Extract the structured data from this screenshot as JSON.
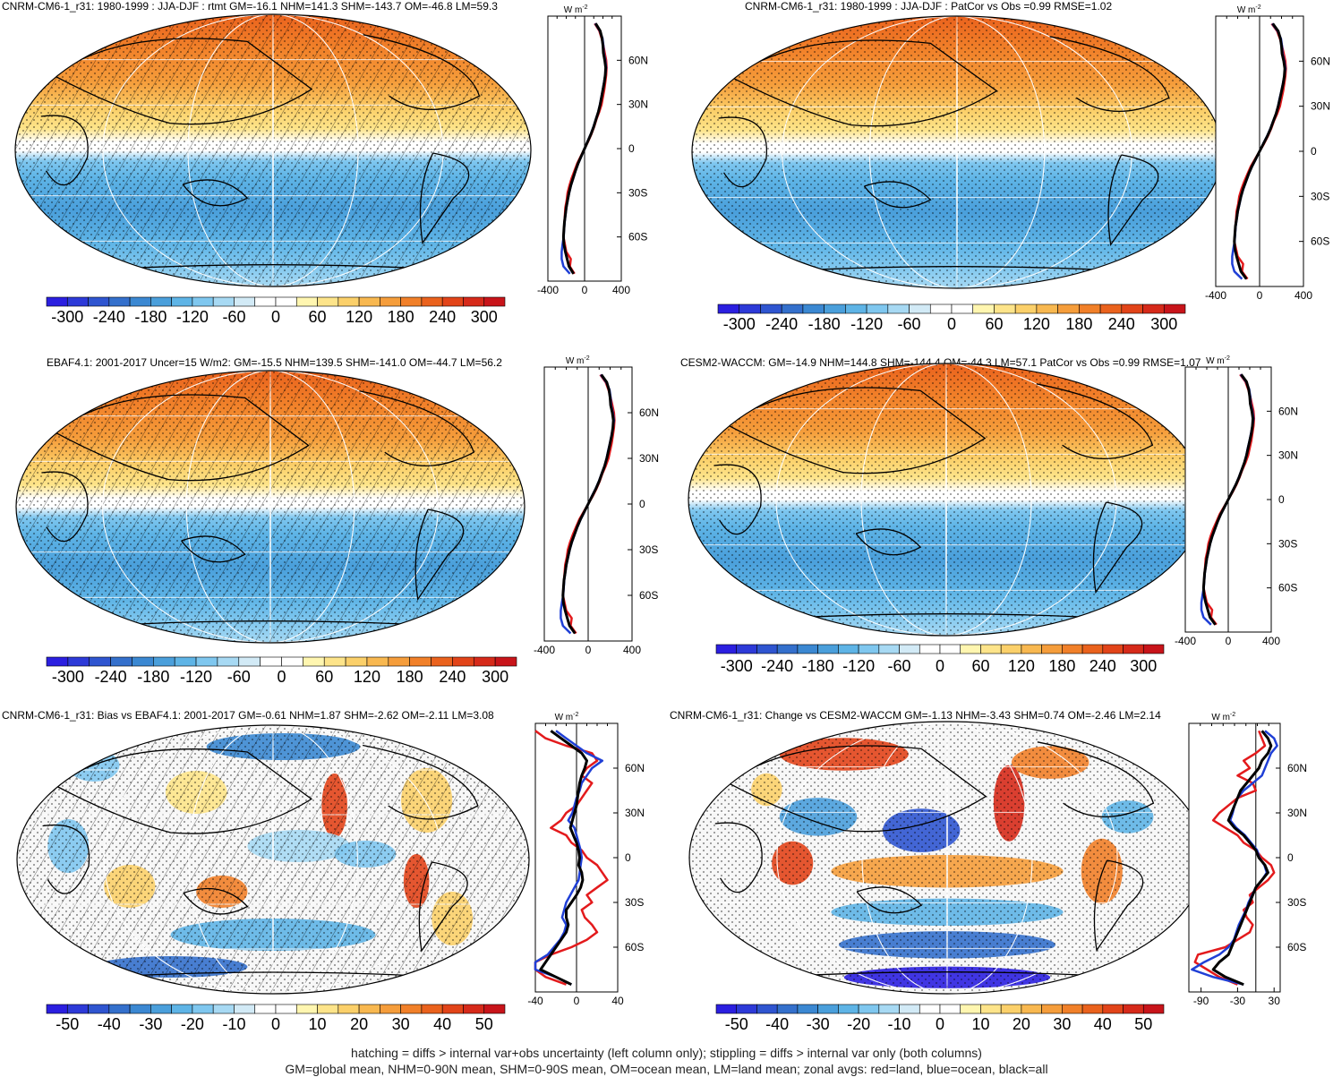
{
  "panels": [
    {
      "id": "p1",
      "title": "CNRM-CM6-1_r31: 1980-1999 : JJA-DJF : rtmt GM=-16.1 NHM=141.3 SHM=-143.7 OM=-46.8 LM=59.3",
      "field": "mean",
      "hatched": true,
      "colorbar_labels": [
        "-300",
        "-240",
        "-180",
        "-120",
        "-60",
        "0",
        "60",
        "120",
        "180",
        "240",
        "300"
      ],
      "zonal_x_ticks": [
        "-400",
        "0",
        "400"
      ],
      "zonal_x_range": [
        -400,
        400
      ],
      "lat_labels": [
        "60N",
        "30N",
        "0",
        "30S",
        "60S"
      ]
    },
    {
      "id": "p2",
      "title": "CNRM-CM6-1_r31: 1980-1999 : JJA-DJF : PatCor vs Obs =0.99 RMSE=1.02",
      "field": "mean",
      "hatched": false,
      "colorbar_labels": [
        "-300",
        "-240",
        "-180",
        "-120",
        "-60",
        "0",
        "60",
        "120",
        "180",
        "240",
        "300"
      ],
      "zonal_x_ticks": [
        "-400",
        "0",
        "400"
      ],
      "zonal_x_range": [
        -400,
        400
      ],
      "lat_labels": [
        "60N",
        "30N",
        "0",
        "30S",
        "60S"
      ]
    },
    {
      "id": "p3",
      "title": "EBAF4.1: 2001-2017 Uncer=15 W/m2: GM=-15.5 NHM=139.5 SHM=-141.0 OM=-44.7 LM=56.2",
      "field": "mean",
      "hatched": true,
      "colorbar_labels": [
        "-300",
        "-240",
        "-180",
        "-120",
        "-60",
        "0",
        "60",
        "120",
        "180",
        "240",
        "300"
      ],
      "zonal_x_ticks": [
        "-400",
        "0",
        "400"
      ],
      "zonal_x_range": [
        -400,
        400
      ],
      "lat_labels": [
        "60N",
        "30N",
        "0",
        "30S",
        "60S"
      ]
    },
    {
      "id": "p4",
      "title": "CESM2-WACCM: GM=-14.9 NHM=144.8 SHM=-144.4 OM=-44.3 LM=57.1 PatCor vs Obs =0.99 RMSE=1.07",
      "field": "mean",
      "hatched": false,
      "colorbar_labels": [
        "-300",
        "-240",
        "-180",
        "-120",
        "-60",
        "0",
        "60",
        "120",
        "180",
        "240",
        "300"
      ],
      "zonal_x_ticks": [
        "-400",
        "0",
        "400"
      ],
      "zonal_x_range": [
        -400,
        400
      ],
      "lat_labels": [
        "60N",
        "30N",
        "0",
        "30S",
        "60S"
      ]
    },
    {
      "id": "p5",
      "title": "CNRM-CM6-1_r31: Bias vs EBAF4.1: 2001-2017 GM=-0.61 NHM=1.87 SHM=-2.62 OM=-2.11 LM=3.08",
      "field": "bias",
      "hatched": true,
      "colorbar_labels": [
        "-50",
        "-40",
        "-30",
        "-20",
        "-10",
        "0",
        "10",
        "20",
        "30",
        "40",
        "50"
      ],
      "zonal_x_ticks": [
        "-40",
        "0",
        "40"
      ],
      "zonal_x_range": [
        -40,
        40
      ],
      "lat_labels": [
        "60N",
        "30N",
        "0",
        "30S",
        "60S"
      ]
    },
    {
      "id": "p6",
      "title": "CNRM-CM6-1_r31: Change vs CESM2-WACCM GM=-1.13 NHM=-3.43 SHM=0.74 OM=-2.46 LM=2.14",
      "field": "change",
      "hatched": false,
      "colorbar_labels": [
        "-50",
        "-40",
        "-30",
        "-20",
        "-10",
        "0",
        "10",
        "20",
        "30",
        "40",
        "50"
      ],
      "zonal_x_ticks": [
        "-90",
        "-30",
        "30"
      ],
      "zonal_x_range": [
        -110,
        40
      ],
      "lat_labels": [
        "60N",
        "30N",
        "0",
        "30S",
        "60S"
      ]
    }
  ],
  "unit_label": "W m",
  "unit_superscript": "-2",
  "colorbar_colors": [
    "#2b1fe0",
    "#2d3ad8",
    "#2f55d0",
    "#3470cc",
    "#3b88d2",
    "#4a9fdb",
    "#5eb4e6",
    "#7fc7ef",
    "#a7d9f3",
    "#d2eaf6",
    "#ffffff",
    "#ffffff",
    "#fff6b0",
    "#fde48a",
    "#fbd06a",
    "#f8b850",
    "#f59d3b",
    "#f18029",
    "#ea621d",
    "#e24419",
    "#d62a1a",
    "#c8141a"
  ],
  "zonal_line_colors": {
    "land": "#e31a1c",
    "ocean": "#1f3fd6",
    "all": "#000000"
  },
  "zonal_profiles": {
    "mean_lats": [
      85,
      80,
      75,
      70,
      65,
      60,
      55,
      50,
      45,
      40,
      35,
      30,
      25,
      20,
      15,
      10,
      5,
      0,
      -5,
      -10,
      -15,
      -20,
      -25,
      -30,
      -35,
      -40,
      -45,
      -50,
      -55,
      -60,
      -65,
      -70,
      -75,
      -80,
      -85
    ],
    "mean_all": [
      120,
      170,
      190,
      200,
      205,
      220,
      230,
      225,
      215,
      200,
      185,
      170,
      150,
      125,
      100,
      70,
      35,
      0,
      -35,
      -70,
      -100,
      -125,
      -150,
      -170,
      -185,
      -200,
      -210,
      -220,
      -225,
      -230,
      -225,
      -210,
      -190,
      -170,
      -120
    ],
    "mean_land": [
      110,
      160,
      185,
      205,
      220,
      235,
      240,
      235,
      225,
      215,
      200,
      185,
      160,
      130,
      105,
      75,
      40,
      0,
      -40,
      -80,
      -110,
      -140,
      -165,
      -185,
      -195,
      -210,
      -215,
      -220,
      -225,
      -230,
      -215,
      -200,
      -150,
      -160,
      -110
    ],
    "mean_ocean": [
      115,
      165,
      195,
      205,
      210,
      225,
      235,
      225,
      212,
      198,
      182,
      168,
      150,
      123,
      98,
      68,
      33,
      0,
      -33,
      -68,
      -98,
      -123,
      -148,
      -168,
      -183,
      -198,
      -208,
      -218,
      -223,
      -228,
      -240,
      -250,
      -250,
      -230,
      -160
    ],
    "bias_lats": [
      85,
      80,
      75,
      70,
      65,
      60,
      55,
      50,
      45,
      40,
      35,
      30,
      25,
      20,
      15,
      10,
      5,
      0,
      -5,
      -10,
      -15,
      -20,
      -25,
      -30,
      -35,
      -40,
      -45,
      -50,
      -55,
      -60,
      -65,
      -70,
      -75,
      -80,
      -85
    ],
    "bias_all": [
      -25,
      -15,
      -5,
      5,
      10,
      8,
      5,
      3,
      2,
      1,
      0,
      -2,
      -4,
      -6,
      -3,
      0,
      2,
      3,
      2,
      5,
      6,
      4,
      0,
      -5,
      -10,
      -10,
      -8,
      -10,
      -15,
      -20,
      -25,
      -30,
      -35,
      -20,
      -5
    ],
    "bias_land": [
      -40,
      -30,
      -10,
      15,
      20,
      10,
      5,
      15,
      10,
      5,
      0,
      -10,
      -15,
      -25,
      -10,
      -5,
      5,
      10,
      20,
      25,
      30,
      20,
      10,
      15,
      5,
      8,
      15,
      20,
      10,
      -5,
      -25,
      -40,
      -50,
      -30,
      -10
    ],
    "bias_ocean": [
      -20,
      -10,
      0,
      10,
      25,
      15,
      10,
      5,
      3,
      0,
      -2,
      -4,
      -8,
      -2,
      0,
      2,
      4,
      5,
      4,
      3,
      2,
      -2,
      -6,
      -10,
      -12,
      -14,
      -10,
      -12,
      -16,
      -22,
      -28,
      -45,
      -42,
      -20,
      -5
    ],
    "change_all": [
      10,
      20,
      25,
      20,
      10,
      5,
      -5,
      -15,
      -25,
      -30,
      -35,
      -40,
      -45,
      -35,
      -20,
      -10,
      0,
      5,
      15,
      20,
      10,
      0,
      -5,
      -10,
      -15,
      -20,
      -25,
      -30,
      -35,
      -40,
      -45,
      -60,
      -70,
      -50,
      -20
    ],
    "change_land": [
      5,
      10,
      15,
      0,
      -20,
      -10,
      -30,
      -5,
      0,
      -30,
      -45,
      -60,
      -70,
      -50,
      -30,
      -20,
      0,
      10,
      25,
      30,
      20,
      5,
      -10,
      -5,
      -20,
      -15,
      -5,
      -10,
      -30,
      -50,
      -95,
      -100,
      -80,
      -60,
      -30
    ],
    "change_ocean": [
      15,
      30,
      35,
      25,
      20,
      15,
      10,
      -5,
      -20,
      -30,
      -35,
      -38,
      -42,
      -32,
      -18,
      -8,
      2,
      6,
      14,
      18,
      10,
      0,
      -6,
      -12,
      -16,
      -22,
      -28,
      -32,
      -36,
      -45,
      -60,
      -85,
      -105,
      -70,
      -20
    ]
  },
  "footer": [
    "hatching = diffs > internal var+obs uncertainty (left column only); stippling = diffs > internal var only (both columns)",
    "GM=global mean, NHM=0-90N mean, SHM=0-90S mean, OM=ocean mean, LM=land mean; zonal avgs: red=land, blue=ocean, black=all"
  ]
}
